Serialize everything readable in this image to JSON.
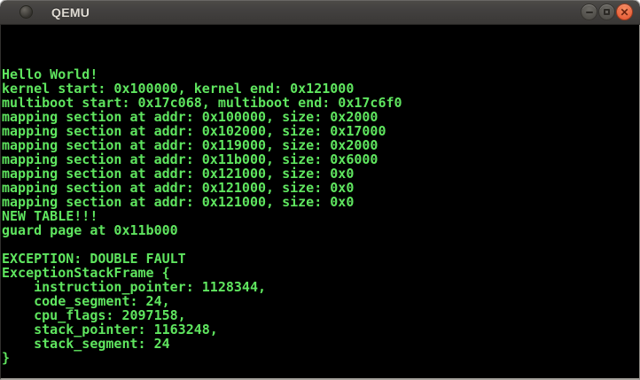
{
  "window": {
    "title": "QEMU",
    "controls": {
      "minimize_label": "minimize",
      "maximize_label": "maximize",
      "close_label": "close",
      "close_glyph": "✕"
    },
    "titlebar_color": "#434140",
    "close_button_color": "#e8603a"
  },
  "console": {
    "background": "#000000",
    "foreground": "#5fe55f",
    "lines": [
      "Hello World!",
      "kernel start: 0x100000, kernel end: 0x121000",
      "multiboot start: 0x17c068, multiboot end: 0x17c6f0",
      "mapping section at addr: 0x100000, size: 0x2000",
      "mapping section at addr: 0x102000, size: 0x17000",
      "mapping section at addr: 0x119000, size: 0x2000",
      "mapping section at addr: 0x11b000, size: 0x6000",
      "mapping section at addr: 0x121000, size: 0x0",
      "mapping section at addr: 0x121000, size: 0x0",
      "mapping section at addr: 0x121000, size: 0x0",
      "NEW TABLE!!!",
      "guard page at 0x11b000",
      "",
      "EXCEPTION: DOUBLE FAULT",
      "ExceptionStackFrame {",
      "    instruction_pointer: 1128344,",
      "    code_segment: 24,",
      "    cpu_flags: 2097158,",
      "    stack_pointer: 1163248,",
      "    stack_segment: 24",
      "}"
    ]
  }
}
